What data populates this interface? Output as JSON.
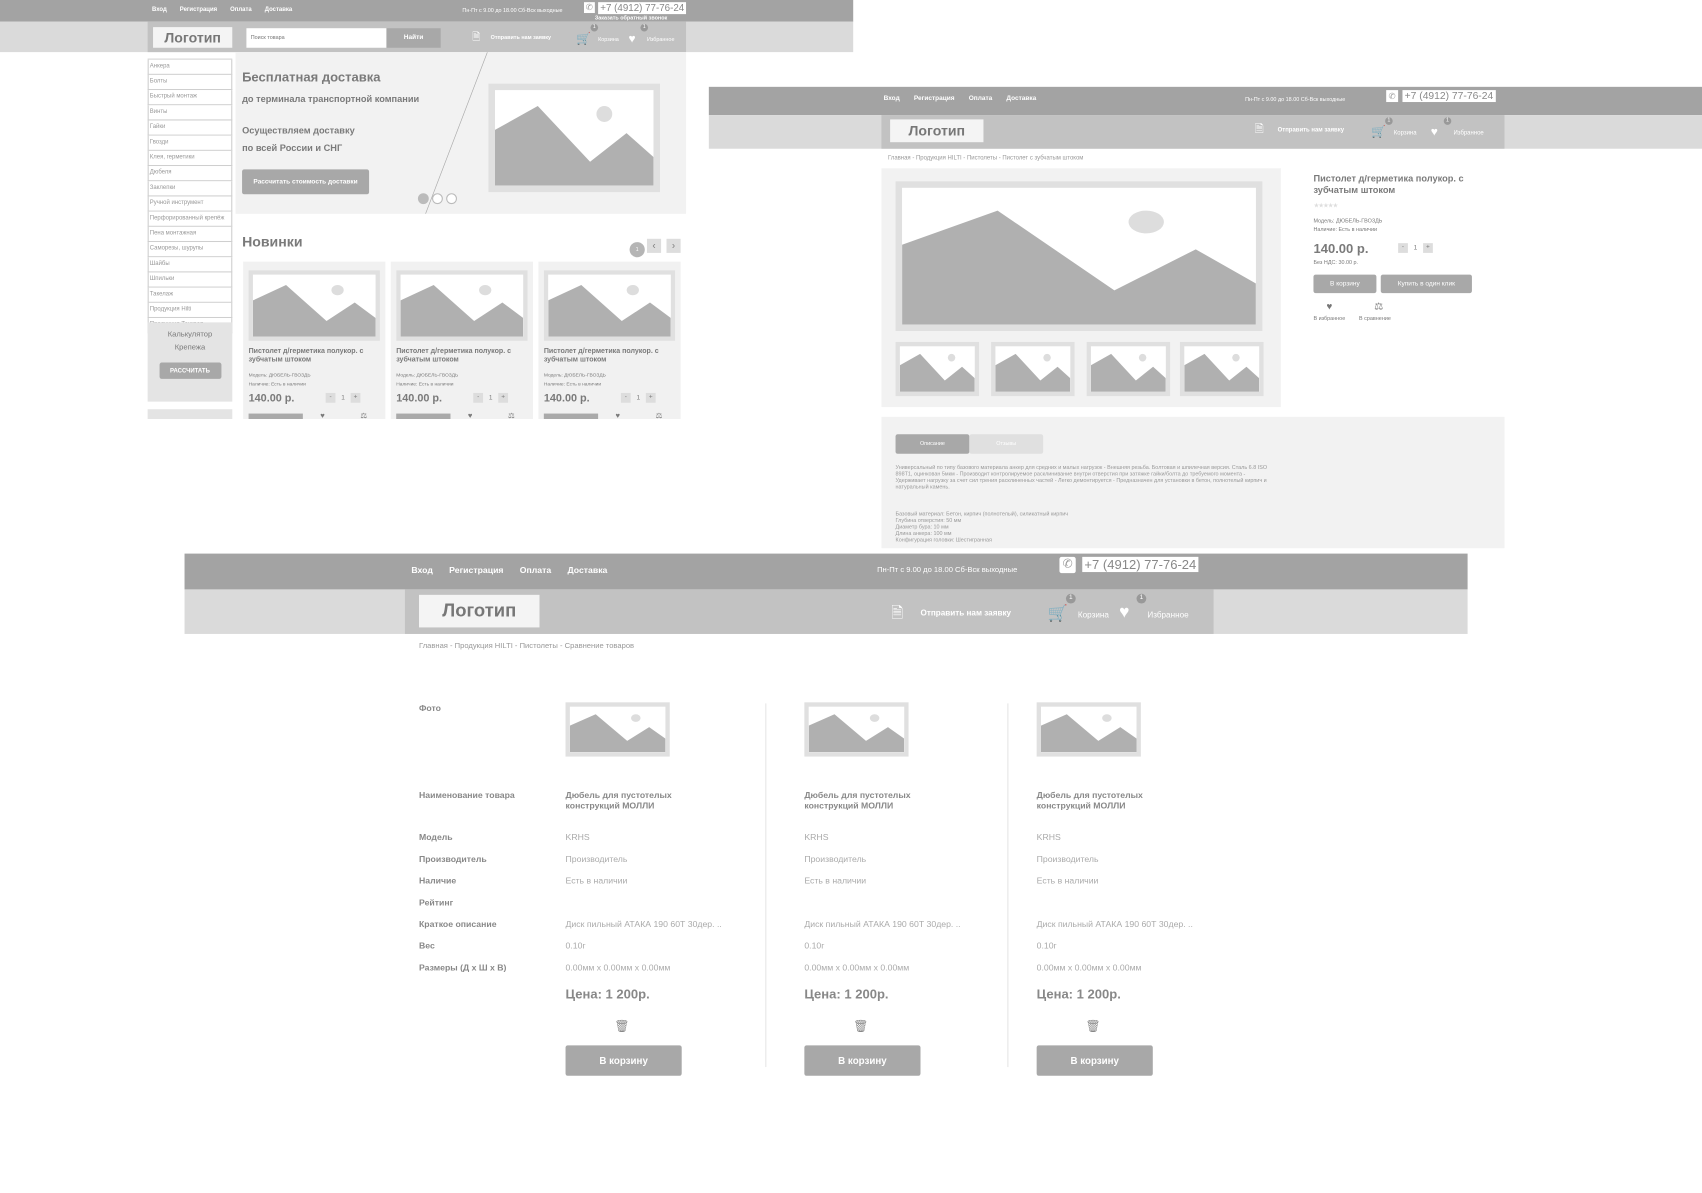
{
  "header": {
    "nav": [
      "Вход",
      "Регистрация",
      "Оплата",
      "Доставка"
    ],
    "hours": "Пн-Пт с 9.00 до 18.00   Сб-Вск  выходные",
    "phone": "+7 (4912) 77-76-24",
    "callback": "Заказать обратный звонок",
    "logo": "Логотип",
    "search_placeholder": "Поиск товара",
    "search_button": "Найти",
    "request": "Отправить нам заявку",
    "cart": "Корзина",
    "cart_count": "1",
    "favorites": "Избранное",
    "favorites_count": "1"
  },
  "home": {
    "sidebar": [
      "Анкера",
      "Болты",
      "Быстрый монтаж",
      "Винты",
      "Гайки",
      "Гвозди",
      "Клея, герметики",
      "Дюбеля",
      "Заклепки",
      "Ручной инструмент",
      "Перфорированный крепёж",
      "Пена монтажная",
      "Саморезы, шурупы",
      "Шайбы",
      "Шпильки",
      "Такелаж",
      "Продукция Hilti",
      "Продукция Техкреп"
    ],
    "calculator": {
      "line1": "Калькулятор",
      "line2": "Крепежа",
      "button": "РАССЧИТАТЬ"
    },
    "banner": {
      "title": "Бесплатная доставка",
      "subtitle": "до терминала транспортной компании",
      "line3": "Осуществляем доставку",
      "line4": "по всей России и  СНГ",
      "button": "Рассчитать стоимость доставки"
    },
    "new_title": "Новинки",
    "page_badge": "1",
    "cards": [
      {
        "name": "Пистолет д/герметика полукор. с зубчатым штоком",
        "model": "Модель: ДЮБЕЛЬ-ГВОЗДЬ",
        "stock": "Наличие: Есть в наличии",
        "price": "140.00 р.",
        "qty": "1"
      },
      {
        "name": "Пистолет д/герметика полукор. с зубчатым штоком",
        "model": "Модель: ДЮБЕЛЬ-ГВОЗДЬ",
        "stock": "Наличие: Есть в наличии",
        "price": "140.00 р.",
        "qty": "1"
      },
      {
        "name": "Пистолет д/герметика полукор. с зубчатым штоком",
        "model": "Модель: ДЮБЕЛЬ-ГВОЗДЬ",
        "stock": "Наличие: Есть в наличии",
        "price": "140.00 р.",
        "qty": "1"
      }
    ]
  },
  "product": {
    "breadcrumb": "Главная - Продукция HILTI - Пистолеты - Пистолет с зубчатым штоком",
    "title": "Пистолет д/герметика полукор. с зубчатым штоком",
    "stars": "★★★★★",
    "model": "Модель: ДЮБЕЛЬ-ГВОЗДЬ",
    "stock": "Наличие: Есть в наличии",
    "price": "140.00 р.",
    "no_vat": "Без НДС: 30.00 р.",
    "qty": "1",
    "to_cart": "В корзину",
    "one_click": "Купить в один клик",
    "to_favorites": "В избранное",
    "to_compare": "В сравнение",
    "tabs": [
      "Описание",
      "Отзывы"
    ],
    "description": "Универсальный по типу базового материала анкер для средних и малых нагрузок - Внешняя резьба. Болтовая и шпилечная версия. Сталь 6.8 ISO 898T1, оцинкован 5мкм - Производит контролируемое расклинивание внутри отверстия при затяжке гайки/болта до требуемого момента - Удерживает нагрузку за счет сил трения расклиненных частей - Легко демонтируется - Предназначен для установки в бетон, полнотелый кирпич и натуральный камень.",
    "specs": [
      "Базовый материал:    Бетон, кирпич (полнотелый), силикатный кирпич",
      "Глубина отверстия:    50 мм",
      "Диаметр бура:    10 мм",
      "Длина анкера:    100 мм",
      "Конфигурация головки:    Шестигранная"
    ]
  },
  "compare": {
    "breadcrumb": "Главная - Продукция HILTI - Пистолеты - Сравнение товаров",
    "labels": [
      "Фото",
      "Наименование товара",
      "Модель",
      "Производитель",
      "Наличие",
      "Рейтинг",
      "Краткое описание",
      "Вес",
      "Размеры (Д х Ш х В)"
    ],
    "items": [
      {
        "name": "Дюбель для пустотелых конструкций МОЛЛИ",
        "model": "KRHS",
        "maker": "Производитель",
        "stock": "Есть в наличии",
        "desc": "Диск пильный АТАКА 190 60Т 30дер. ..",
        "weight": "0.10г",
        "size": "0.00мм х 0.00мм х 0.00мм",
        "price": "Цена: 1 200р.",
        "button": "В корзину"
      },
      {
        "name": "Дюбель для пустотелых конструкций МОЛЛИ",
        "model": "KRHS",
        "maker": "Производитель",
        "stock": "Есть в наличии",
        "desc": "Диск пильный АТАКА 190 60Т 30дер. ..",
        "weight": "0.10г",
        "size": "0.00мм х 0.00мм х 0.00мм",
        "price": "Цена: 1 200р.",
        "button": "В корзину"
      },
      {
        "name": "Дюбель для пустотелых конструкций МОЛЛИ",
        "model": "KRHS",
        "maker": "Производитель",
        "stock": "Есть в наличии",
        "desc": "Диск пильный АТАКА 190 60Т 30дер. ..",
        "weight": "0.10г",
        "size": "0.00мм х 0.00мм х 0.00мм",
        "price": "Цена: 1 200р.",
        "button": "В корзину"
      }
    ]
  }
}
